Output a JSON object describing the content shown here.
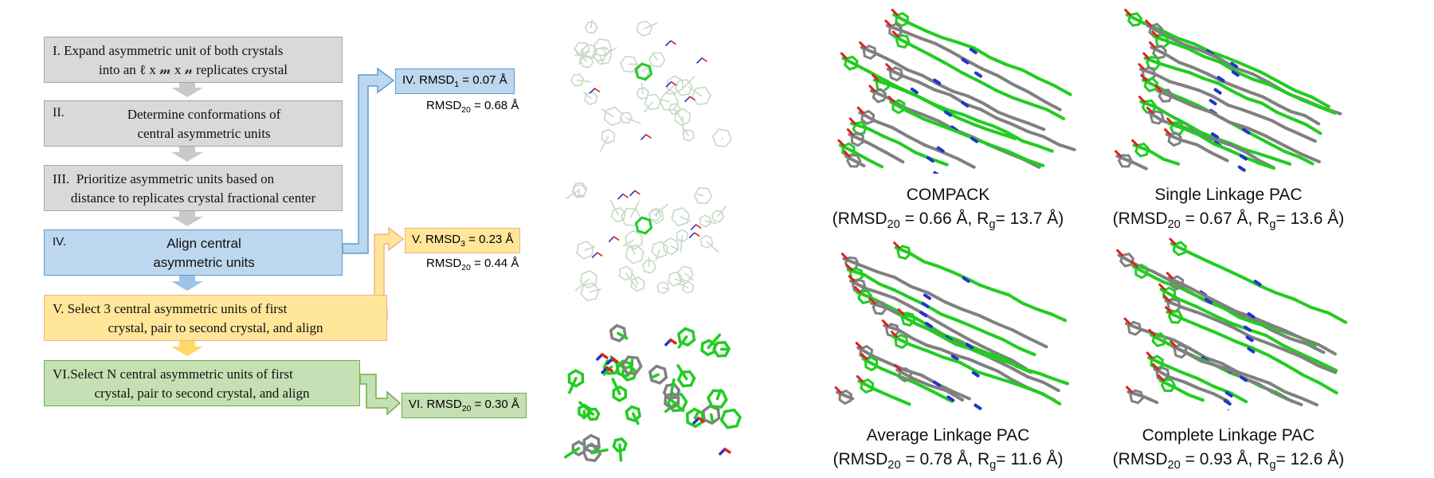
{
  "steps": [
    {
      "numeral": "I.",
      "text_line1": "Expand asymmetric unit of both crystals",
      "text_line2": "into an ℓ x 𝓂 x 𝓃 replicates crystal"
    },
    {
      "numeral": "II.",
      "text_line1": "Determine conformations of",
      "text_line2": "central asymmetric units"
    },
    {
      "numeral": "III.",
      "text_line1": "Prioritize asymmetric units based on",
      "text_line2": "distance to replicates crystal fractional center"
    },
    {
      "numeral": "IV.",
      "text_line1": "Align central",
      "text_line2": "asymmetric units"
    },
    {
      "numeral": "V.",
      "text_line1": "Select 3 central asymmetric units of first",
      "text_line2": "crystal, pair to second crystal, and align"
    },
    {
      "numeral": "VI.",
      "text_line1": "Select N central asymmetric units of first",
      "text_line2": "crystal, pair to second crystal, and align"
    }
  ],
  "results": [
    {
      "label": "IV. RMSD",
      "sub": "1",
      "value": " = 0.07 Å",
      "extra_label": "RMSD",
      "extra_sub": "20",
      "extra_value": " = 0.68 Å"
    },
    {
      "label": "V. RMSD",
      "sub": "3",
      "value": " = 0.23 Å",
      "extra_label": "RMSD",
      "extra_sub": "20",
      "extra_value": " = 0.44 Å"
    },
    {
      "label": "VI. RMSD",
      "sub": "20",
      "value": " = 0.30 Å"
    }
  ],
  "panels": [
    {
      "title": "COMPACK",
      "rmsd_label": "(RMSD",
      "rmsd_sub": "20",
      "rmsd_value": " = 0.66 Å, R",
      "rg_sub": "g",
      "rg_value": "= 13.7 Å)"
    },
    {
      "title": "Single Linkage PAC",
      "rmsd_label": "(RMSD",
      "rmsd_sub": "20",
      "rmsd_value": " = 0.67 Å, R",
      "rg_sub": "g",
      "rg_value": "= 13.6 Å)"
    },
    {
      "title": "Average Linkage PAC",
      "rmsd_label": "(RMSD",
      "rmsd_sub": "20",
      "rmsd_value": " = 0.78 Å, R",
      "rg_sub": "g",
      "rg_value": "= 11.6 Å)"
    },
    {
      "title": "Complete Linkage PAC",
      "rmsd_label": "(RMSD",
      "rmsd_sub": "20",
      "rmsd_value": " = 0.93 Å, R",
      "rg_sub": "g",
      "rg_value": "= 12.6 Å)"
    }
  ],
  "colors": {
    "gray": "#d9d9d9",
    "blue": "#bdd7ee",
    "yellow": "#ffe699",
    "green": "#c5e0b4",
    "mol_green": "#22cc22",
    "mol_gray": "#808080",
    "mol_blue": "#2233cc",
    "mol_red": "#dd2222",
    "mol_pale": "#c8d8c8"
  }
}
